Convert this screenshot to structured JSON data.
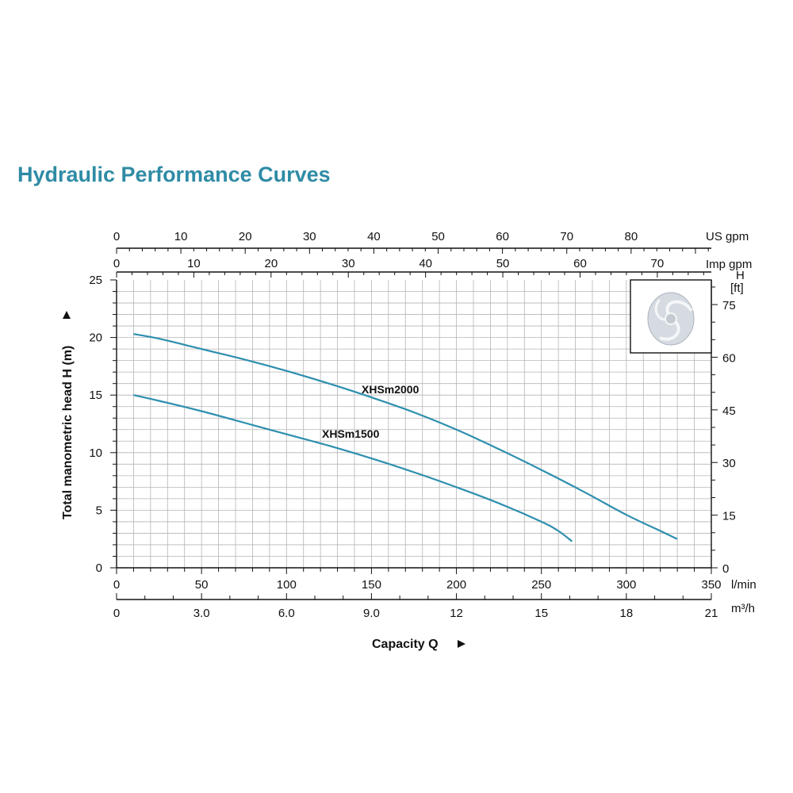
{
  "title": "Hydraulic Performance Curves",
  "chart_data": {
    "type": "line",
    "xlabel": "Capacity Q",
    "ylabel": "Total manometric head H (m)",
    "xlim": [
      0,
      350
    ],
    "ylim": [
      0,
      25
    ],
    "grid": true,
    "x_unit": "l/min",
    "y_ticks": [
      "0",
      "5",
      "10",
      "15",
      "20",
      "25"
    ],
    "x_ticks": [
      "0",
      "50",
      "100",
      "150",
      "200",
      "250",
      "300",
      "350"
    ],
    "series": [
      {
        "name": "XHSm2000",
        "color": "#2d8fae",
        "x": [
          10,
          25,
          50,
          75,
          100,
          125,
          150,
          175,
          200,
          225,
          250,
          275,
          300,
          320,
          330
        ],
        "y": [
          20.3,
          19.9,
          19.0,
          18.1,
          17.1,
          16.0,
          14.8,
          13.5,
          12.0,
          10.3,
          8.5,
          6.6,
          4.6,
          3.2,
          2.5
        ]
      },
      {
        "name": "XHSm1500",
        "color": "#2d8fae",
        "x": [
          10,
          25,
          50,
          75,
          100,
          125,
          150,
          175,
          200,
          225,
          250,
          260,
          268
        ],
        "y": [
          15.0,
          14.5,
          13.6,
          12.6,
          11.6,
          10.6,
          9.5,
          8.3,
          7.0,
          5.6,
          4.0,
          3.2,
          2.3
        ]
      }
    ],
    "secondary_axes": {
      "us_gpm": {
        "unit": "US gpm",
        "ticks": [
          "0",
          "10",
          "20",
          "30",
          "40",
          "50",
          "60",
          "70",
          "80"
        ]
      },
      "imp_gpm": {
        "unit": "Imp gpm",
        "ticks": [
          "0",
          "10",
          "20",
          "30",
          "40",
          "50",
          "60",
          "70"
        ]
      },
      "head_ft": {
        "unit_line1": "H",
        "unit_line2": "[ft]",
        "ticks": [
          "0",
          "15",
          "30",
          "45",
          "60",
          "75"
        ]
      },
      "m3h": {
        "unit": "m³/h",
        "ticks": [
          "0",
          "3.0",
          "6.0",
          "9.0",
          "12",
          "15",
          "18",
          "21"
        ]
      }
    },
    "impeller_icon": "open-impeller-icon"
  }
}
